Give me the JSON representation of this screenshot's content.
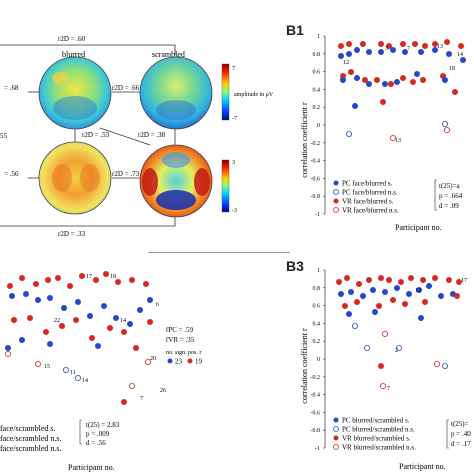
{
  "topomaps": {
    "labels": {
      "blurred": "blurred",
      "scrambled": "scrambled",
      "amplitude": "amplitude in μV"
    },
    "correlations": {
      "top_arc": "r2D = .60",
      "left_top": "= .68",
      "middle_top": "r2D = .66",
      "left_mid": "55",
      "center_left": "r2D = .53",
      "center_right": "r2D = .38",
      "left_bottom": "= .56",
      "middle_bottom": "r2D = .73",
      "bottom_arc": "r2D = .33"
    },
    "colorbar_top": {
      "max": "7",
      "min": "-7"
    },
    "colorbar_bottom": {
      "max": "3",
      "min": "-3"
    }
  },
  "panel_b1": {
    "label": "B1",
    "ylabel": "correlation coefficient r",
    "xlabel": "Participant no.",
    "yticks": [
      "1",
      "0.8",
      "0.6",
      "0.4",
      "0.2",
      "0",
      "-0.2",
      "-0.4",
      "-0.6",
      "-0.8",
      "-1"
    ],
    "legend": [
      "PC face/blurred s.",
      "PC face/blurred n.s.",
      "VR face/blurred s.",
      "VR face/blurred n.s."
    ],
    "stats": [
      "t(25)=a",
      "p = .664",
      "d = .09"
    ],
    "point_labels": [
      "3",
      "7",
      "13",
      "12",
      "18",
      "14",
      "13"
    ]
  },
  "panel_b2": {
    "point_labels": [
      "17",
      "18",
      "22",
      "14",
      "6",
      "20",
      "7",
      "26",
      "15",
      "11",
      "14"
    ],
    "r_pc": "r̄PC = .59",
    "r_vr": "r̄VR = .35",
    "count_title": "no. sign. pos. r",
    "count_pc": "23",
    "count_vr": "19",
    "legend": [
      "face/scrambled s.",
      "face/scrambled n.s.",
      "face/scrambled n.s."
    ],
    "stats": [
      "t(25) = 2.83",
      "p = .009",
      "d = .56"
    ],
    "xlabel": "Participant no."
  },
  "panel_b3": {
    "label": "B3",
    "ylabel": "correlation coefficient r",
    "xlabel": "Participant no.",
    "yticks": [
      "1",
      "0.8",
      "0.6",
      "0.4",
      "0.2",
      "0",
      "-0.2",
      "-0.4",
      "-0.6",
      "-0.8",
      "-1"
    ],
    "legend": [
      "PC blurred/scrambled s.",
      "PC blurred/scrambled n.s.",
      "VR blurred/scrambled s.",
      "VR blurred/scrambled n.s."
    ],
    "stats": [
      "t(25)=",
      "p = .40",
      "d = .17"
    ],
    "point_labels": [
      "17",
      "13",
      "2",
      "7"
    ]
  },
  "colors": {
    "pc": "#2448c8",
    "vr": "#d42a22"
  }
}
